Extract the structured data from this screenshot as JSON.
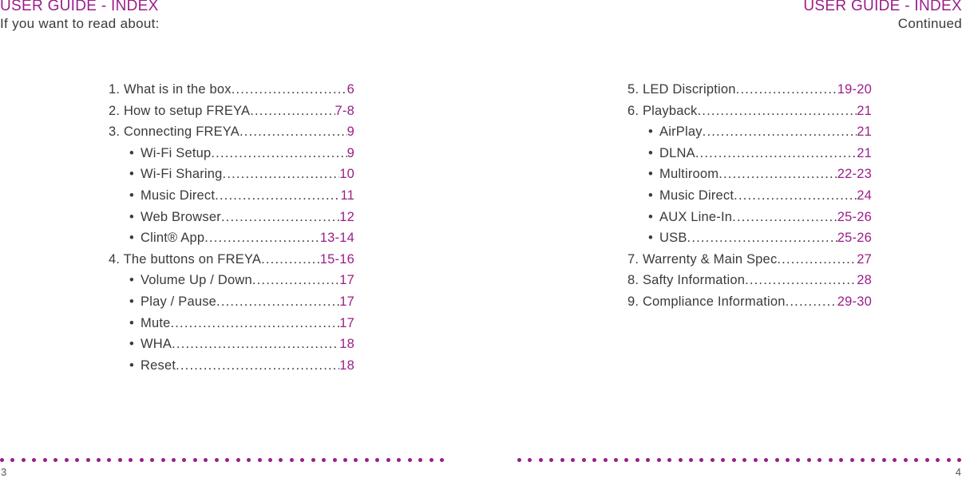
{
  "left_page": {
    "header": {
      "title": "USER GUIDE - INDEX",
      "subtitle": "If you want to read about:"
    },
    "entries": [
      {
        "label": "1. What is in the box",
        "page": "6",
        "sub": false
      },
      {
        "label": "2. How to setup FREYA",
        "page": "7-8",
        "sub": false
      },
      {
        "label": "3. Connecting FREYA",
        "page": "9",
        "sub": false
      },
      {
        "label": "Wi-Fi Setup",
        "page": "9",
        "sub": true
      },
      {
        "label": "Wi-Fi Sharing",
        "page": "10",
        "sub": true
      },
      {
        "label": "Music Direct",
        "page": "11",
        "sub": true
      },
      {
        "label": "Web Browser",
        "page": "12",
        "sub": true
      },
      {
        "label": "Clint® App",
        "page": "13-14",
        "sub": true
      },
      {
        "label": "4. The buttons on FREYA",
        "page": "15-16",
        "sub": false
      },
      {
        "label": "Volume Up / Down",
        "page": "17",
        "sub": true
      },
      {
        "label": "Play / Pause",
        "page": "17",
        "sub": true
      },
      {
        "label": "Mute",
        "page": "17",
        "sub": true
      },
      {
        "label": "WHA",
        "page": "18",
        "sub": true
      },
      {
        "label": "Reset",
        "page": "18",
        "sub": true
      }
    ],
    "page_number": "3"
  },
  "right_page": {
    "header": {
      "title": "USER GUIDE - INDEX",
      "subtitle": "Continued"
    },
    "entries": [
      {
        "label": "5. LED Discription",
        "page": "19-20",
        "sub": false
      },
      {
        "label": "6. Playback",
        "page": "21",
        "sub": false
      },
      {
        "label": "AirPlay",
        "page": "21",
        "sub": true
      },
      {
        "label": "DLNA",
        "page": "21",
        "sub": true
      },
      {
        "label": "Multiroom",
        "page": "22-23",
        "sub": true
      },
      {
        "label": "Music Direct",
        "page": "24",
        "sub": true
      },
      {
        "label": "AUX Line-In",
        "page": "25-26",
        "sub": true
      },
      {
        "label": "USB",
        "page": "25-26",
        "sub": true
      },
      {
        "label": "7. Warrenty & Main Spec",
        "page": "27",
        "sub": false
      },
      {
        "label": "8. Safty Information",
        "page": "28",
        "sub": false
      },
      {
        "label": "9. Compliance Information",
        "page": "29-30",
        "sub": false
      }
    ],
    "page_number": "4"
  },
  "bullet_symbol": "•",
  "colors": {
    "accent": "#9b1d8a",
    "text": "#3a3a3a"
  }
}
